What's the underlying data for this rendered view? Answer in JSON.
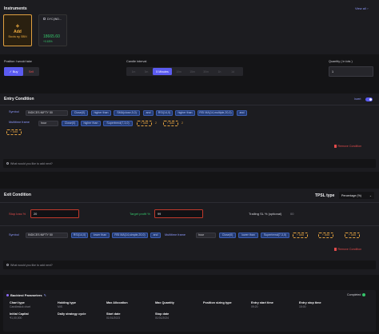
{
  "instruments": {
    "title": "Instruments",
    "view_all": "View all",
    "add_card": {
      "plus": "+",
      "label": "Add",
      "hint": "Stocks eg: SBIN"
    },
    "selected": {
      "name": "DYC(IND...",
      "price": "18665.60",
      "change": "+0.65%"
    }
  },
  "position": {
    "label": "Position I would take",
    "buy": "Buy",
    "sell": "Sell"
  },
  "candle": {
    "label": "Candle interval",
    "options": [
      "1m",
      "3m",
      "5 Minutes",
      "10m",
      "15m",
      "30m",
      "1h",
      "1d"
    ],
    "selected_index": 2
  },
  "quantity": {
    "label": "Quantity ( in lots )",
    "value": "1"
  },
  "entry": {
    "title": "Entry Condition",
    "switch_label": "Invert",
    "row1": {
      "symbol_label": "Symbol",
      "symbol_value": "INDICES:NIFTY 50",
      "chips": [
        "Close(0)",
        "higher than",
        "SMA(close,5,0)",
        "and",
        "RSI(14,0)",
        "higher than",
        "RSI MA(14,multiple,20,0)",
        "and"
      ]
    },
    "row2": {
      "timeframe_label": "Multitime frame",
      "timeframe_value": "hour",
      "chips": [
        "Close(0)",
        "higher than",
        "Supertrend(7,3,0)"
      ],
      "add1": "+ Add",
      "num1": "2",
      "add2": "+ Add",
      "num2": "2"
    },
    "add3": "+ Add",
    "remove": "Remove Condition",
    "ask_placeholder": "What would you like to add next?"
  },
  "exit": {
    "title": "Exit Condition",
    "tpsl_label": "TPSL type",
    "tpsl_value": "Percentage (%)",
    "stop_loss_label": "Stop loss %",
    "stop_loss_value": "20",
    "target_label": "Target profit %",
    "target_value": "99",
    "trailing_label": "Trailing SL % (optional)",
    "trailing_value": "00",
    "row": {
      "symbol_label": "Symbol",
      "symbol_value": "INDICES:NIFTY 50",
      "chips": [
        "RSI(14,0)",
        "lower than",
        "RSI MA(14,simple,20,0)",
        "and"
      ],
      "timeframe_label": "Multitime frame",
      "timeframe_value": "hour",
      "chips2": [
        "Close(0)",
        "lower than",
        "Supertrend(7,3,0)"
      ],
      "add1": "+ Add",
      "add2": "+ Add",
      "add3": "+ Add"
    },
    "remove": "Remove Condition",
    "ask_placeholder": "What would you like to add next?"
  },
  "backtest": {
    "title": "Backtest Parameters",
    "status": "Completed",
    "fields": [
      {
        "label": "Chart type",
        "value": "Candlestick chart"
      },
      {
        "label": "Holding type",
        "value": "MIS"
      },
      {
        "label": "Max Allocation",
        "value": ""
      },
      {
        "label": "Max Quantity",
        "value": ""
      },
      {
        "label": "Position sizing type",
        "value": ""
      },
      {
        "label": "Entry start time",
        "value": ""
      },
      {
        "label": "Entry stop time",
        "value": ""
      },
      {
        "label": "Initial Capital",
        "value": "₹1,00,000"
      },
      {
        "label": "Daily strategy cycle",
        "value": ""
      },
      {
        "label": "Start date",
        "value": "01/01/2023"
      },
      {
        "label": "Stop date",
        "value": "01/01/2024"
      }
    ],
    "entry_start_value": "09:20",
    "entry_stop_value": "15:00"
  },
  "colors": {
    "accent": "#5b5bf0",
    "panel": "#1c1c20",
    "bg": "#141416",
    "danger": "#e24b4b",
    "positive": "#35c46a",
    "warn": "#e0a040"
  }
}
